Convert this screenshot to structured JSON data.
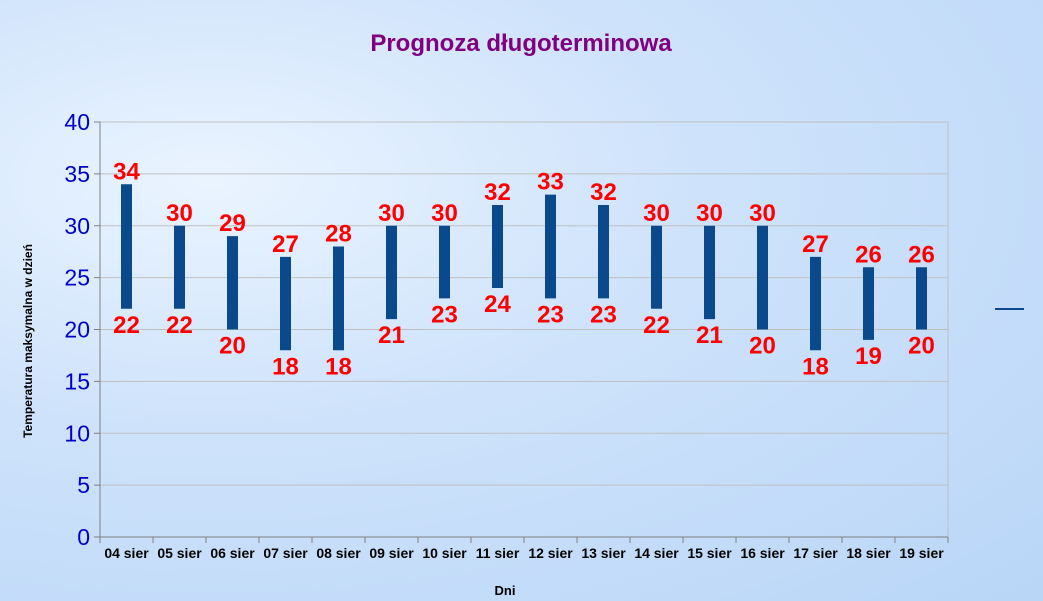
{
  "chart_data": {
    "type": "bar",
    "subtype": "floating-range",
    "title": "Prognoza długoterminowa",
    "xlabel": "Dni",
    "ylabel": "Temperatura maksymalna w dzień",
    "ylim": [
      0,
      40
    ],
    "yticks": [
      0,
      5,
      10,
      15,
      20,
      25,
      30,
      35,
      40
    ],
    "grid": true,
    "categories": [
      "04 sier",
      "05 sier",
      "06 sier",
      "07 sier",
      "08 sier",
      "09 sier",
      "10 sier",
      "11 sier",
      "12 sier",
      "13 sier",
      "14 sier",
      "15 sier",
      "16 sier",
      "17 sier",
      "18 sier",
      "19 sier"
    ],
    "series": [
      {
        "values_low": [
          22,
          22,
          20,
          18,
          18,
          21,
          23,
          24,
          23,
          23,
          22,
          21,
          20,
          18,
          19,
          20
        ],
        "values_high": [
          34,
          30,
          29,
          27,
          28,
          30,
          30,
          32,
          33,
          32,
          30,
          30,
          30,
          27,
          26,
          26
        ]
      }
    ],
    "legend": "right",
    "colors": {
      "bar": "#0a4a8c",
      "label": "#ff0000",
      "title": "#800080",
      "axis_ticks": "#0000cc",
      "axis_title": "#000000",
      "grid": "#c0c0c0"
    }
  }
}
